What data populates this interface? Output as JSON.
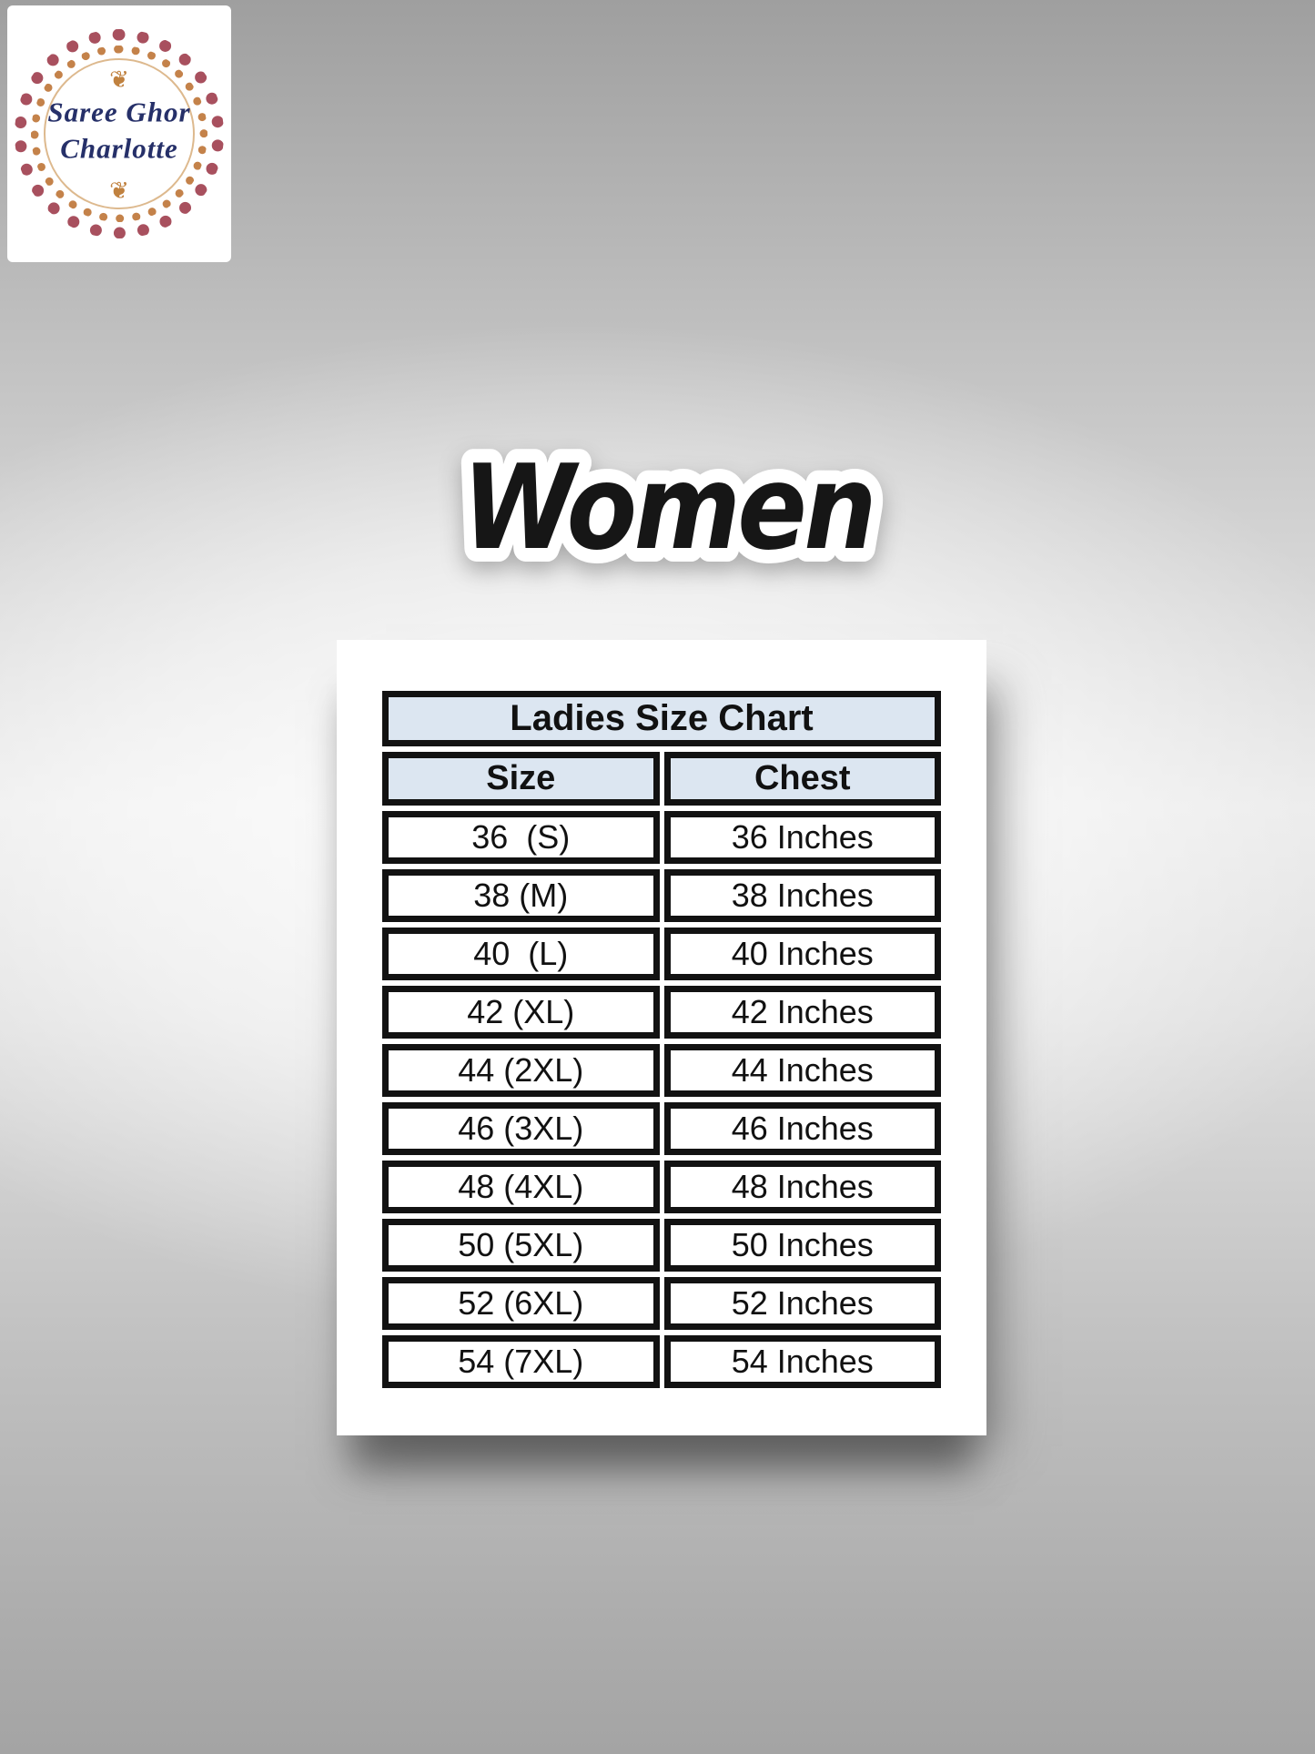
{
  "logo": {
    "line1": "Saree Ghor",
    "line2": "Charlotte",
    "flourish_icon": "❦"
  },
  "title": "Women",
  "size_chart": {
    "header": "Ladies Size Chart",
    "columns": [
      "Size",
      "Chest"
    ],
    "rows": [
      [
        "36  (S)",
        "36 Inches"
      ],
      [
        "38 (M)",
        "38 Inches"
      ],
      [
        "40  (L)",
        "40 Inches"
      ],
      [
        "42 (XL)",
        "42 Inches"
      ],
      [
        "44 (2XL)",
        "44 Inches"
      ],
      [
        "46 (3XL)",
        "46 Inches"
      ],
      [
        "48 (4XL)",
        "48 Inches"
      ],
      [
        "50 (5XL)",
        "50 Inches"
      ],
      [
        "52 (6XL)",
        "52 Inches"
      ],
      [
        "54 (7XL)",
        "54 Inches"
      ]
    ]
  },
  "colors": {
    "header_fill": "#dce6f1",
    "table_border": "#121212",
    "card_background": "#ffffff",
    "logo_text_navy": "#263069",
    "ornament_rust": "#a8505e",
    "ornament_gold": "#c4824a",
    "title_fill": "#161616",
    "title_outline": "#ffffff",
    "backdrop_gray_dark": "#9f9f9f",
    "backdrop_gray_light": "#eeeeee"
  },
  "chart_data": {
    "type": "table",
    "title": "Ladies Size Chart",
    "columns": [
      "Size",
      "Chest"
    ],
    "rows": [
      {
        "size": "36 (S)",
        "chest": "36 Inches"
      },
      {
        "size": "38 (M)",
        "chest": "38 Inches"
      },
      {
        "size": "40 (L)",
        "chest": "40 Inches"
      },
      {
        "size": "42 (XL)",
        "chest": "42 Inches"
      },
      {
        "size": "44 (2XL)",
        "chest": "44 Inches"
      },
      {
        "size": "46 (3XL)",
        "chest": "46 Inches"
      },
      {
        "size": "48 (4XL)",
        "chest": "48 Inches"
      },
      {
        "size": "50 (5XL)",
        "chest": "50 Inches"
      },
      {
        "size": "52 (6XL)",
        "chest": "52 Inches"
      },
      {
        "size": "54 (7XL)",
        "chest": "54 Inches"
      }
    ]
  }
}
